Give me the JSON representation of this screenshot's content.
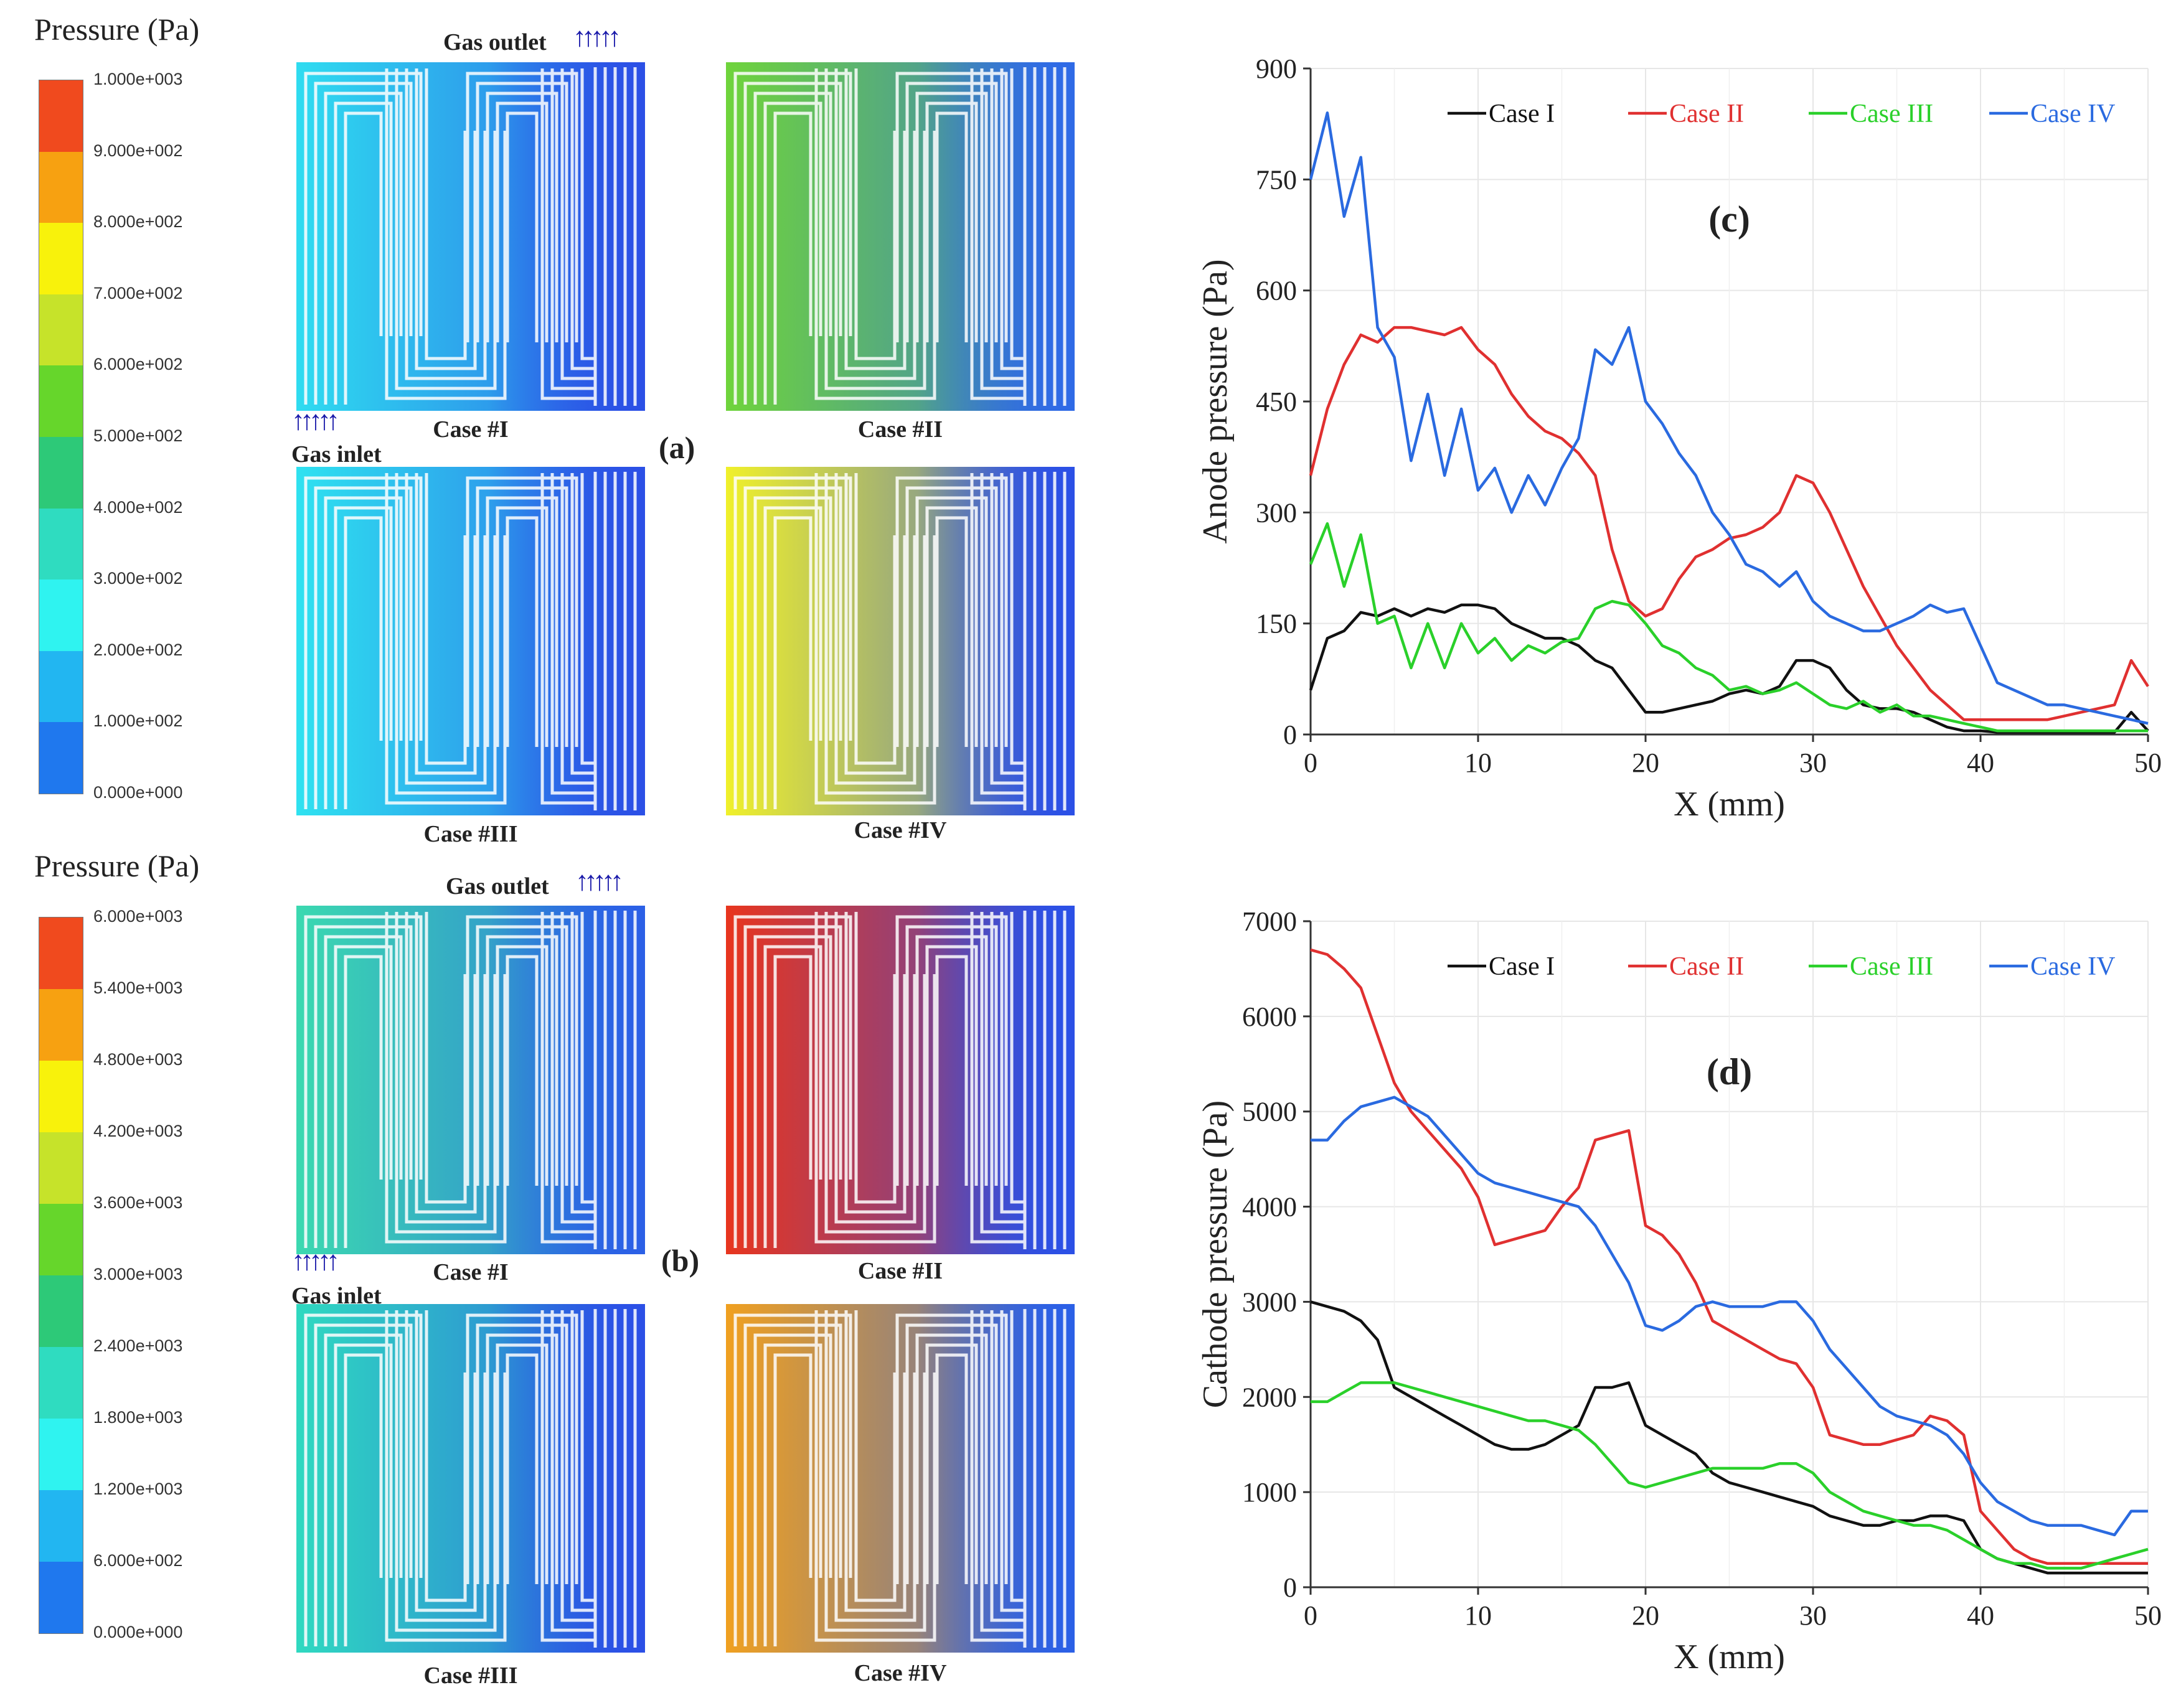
{
  "scale_a": {
    "title": "Pressure (Pa)",
    "labels": [
      "1.000e+003",
      "9.000e+002",
      "8.000e+002",
      "7.000e+002",
      "6.000e+002",
      "5.000e+002",
      "4.000e+002",
      "3.000e+002",
      "2.000e+002",
      "1.000e+002",
      "0.000e+000"
    ],
    "colors": [
      "#f04a1e",
      "#f7a111",
      "#f8f20b",
      "#c6e32a",
      "#66d62b",
      "#2dc978",
      "#2fdcc0",
      "#2ff3f0",
      "#22b6f1",
      "#1f78ee"
    ]
  },
  "scale_b": {
    "title": "Pressure (Pa)",
    "labels": [
      "6.000e+003",
      "5.400e+003",
      "4.800e+003",
      "4.200e+003",
      "3.600e+003",
      "3.000e+003",
      "2.400e+003",
      "1.800e+003",
      "1.200e+003",
      "6.000e+002",
      "0.000e+000"
    ],
    "colors": [
      "#f04a1e",
      "#f7a111",
      "#f8f20b",
      "#c6e32a",
      "#66d62b",
      "#2dc978",
      "#2fdcc0",
      "#2ff3f0",
      "#22b6f1",
      "#1f78ee"
    ]
  },
  "panel_a": {
    "tag": "(a)",
    "gas_outlet": "Gas outlet",
    "gas_inlet": "Gas inlet",
    "arrow_glyphs": "↑↑↑↑↑",
    "cases": [
      {
        "label": "Case #I",
        "base": "#2b50e6",
        "high": "#2fdcf0"
      },
      {
        "label": "Case #II",
        "base": "#2f6ae6",
        "high": "#6fd43b"
      },
      {
        "label": "Case #III",
        "base": "#2b50e6",
        "high": "#2fe2f0"
      },
      {
        "label": "Case #IV",
        "base": "#2b50e6",
        "high": "#f0f02a"
      }
    ]
  },
  "panel_b": {
    "tag": "(b)",
    "gas_outlet": "Gas outlet",
    "gas_inlet": "Gas inlet",
    "arrow_glyphs": "↑↑↑↑↑",
    "cases": [
      {
        "label": "Case #I",
        "base": "#2b60e6",
        "high": "#3bd9b0"
      },
      {
        "label": "Case #II",
        "base": "#2b50e6",
        "high": "#e8351e"
      },
      {
        "label": "Case #III",
        "base": "#2b50e6",
        "high": "#2fd9c0"
      },
      {
        "label": "Case #IV",
        "base": "#2b60e6",
        "high": "#f0a020"
      }
    ]
  },
  "charts": {
    "c": {
      "tag": "(c)",
      "ylabel": "Anode pressure (Pa)",
      "xlabel": "X (mm)"
    },
    "d": {
      "tag": "(d)",
      "ylabel": "Cathode pressure (Pa)",
      "xlabel": "X (mm)"
    }
  },
  "chart_data": [
    {
      "type": "line",
      "title": "(c)",
      "xlabel": "X (mm)",
      "ylabel": "Anode pressure (Pa)",
      "xlim": [
        0,
        50
      ],
      "ylim": [
        0,
        900
      ],
      "xticks": [
        0,
        10,
        20,
        30,
        40,
        50
      ],
      "yticks": [
        0,
        150,
        300,
        450,
        600,
        750,
        900
      ],
      "grid": true,
      "legend_position": "top",
      "series": [
        {
          "name": "Case I",
          "color": "#111111",
          "x": [
            0,
            1,
            2,
            3,
            4,
            5,
            6,
            7,
            8,
            9,
            10,
            11,
            12,
            13,
            14,
            15,
            16,
            17,
            18,
            19,
            20,
            21,
            22,
            23,
            24,
            25,
            26,
            27,
            28,
            29,
            30,
            31,
            32,
            33,
            34,
            35,
            36,
            37,
            38,
            39,
            40,
            41,
            42,
            43,
            44,
            45,
            46,
            47,
            48,
            49,
            50
          ],
          "y": [
            60,
            130,
            140,
            165,
            160,
            170,
            160,
            170,
            165,
            175,
            175,
            170,
            150,
            140,
            130,
            130,
            120,
            100,
            90,
            60,
            30,
            30,
            35,
            40,
            45,
            55,
            60,
            55,
            65,
            100,
            100,
            90,
            60,
            40,
            35,
            35,
            30,
            20,
            10,
            5,
            5,
            3,
            3,
            3,
            3,
            3,
            3,
            3,
            3,
            30,
            5
          ]
        },
        {
          "name": "Case II",
          "color": "#e03030",
          "x": [
            0,
            1,
            2,
            3,
            4,
            5,
            6,
            7,
            8,
            9,
            10,
            11,
            12,
            13,
            14,
            15,
            16,
            17,
            18,
            19,
            20,
            21,
            22,
            23,
            24,
            25,
            26,
            27,
            28,
            29,
            30,
            31,
            32,
            33,
            34,
            35,
            36,
            37,
            38,
            39,
            40,
            41,
            42,
            43,
            44,
            45,
            46,
            47,
            48,
            49,
            50
          ],
          "y": [
            350,
            440,
            500,
            540,
            530,
            550,
            550,
            545,
            540,
            550,
            520,
            500,
            460,
            430,
            410,
            400,
            380,
            350,
            250,
            180,
            160,
            170,
            210,
            240,
            250,
            265,
            270,
            280,
            300,
            350,
            340,
            300,
            250,
            200,
            160,
            120,
            90,
            60,
            40,
            20,
            20,
            20,
            20,
            20,
            20,
            25,
            30,
            35,
            40,
            100,
            65
          ]
        },
        {
          "name": "Case III",
          "color": "#2ad02a",
          "x": [
            0,
            1,
            2,
            3,
            4,
            5,
            6,
            7,
            8,
            9,
            10,
            11,
            12,
            13,
            14,
            15,
            16,
            17,
            18,
            19,
            20,
            21,
            22,
            23,
            24,
            25,
            26,
            27,
            28,
            29,
            30,
            31,
            32,
            33,
            34,
            35,
            36,
            37,
            38,
            39,
            40,
            41,
            42,
            43,
            44,
            45,
            46,
            47,
            48,
            49,
            50
          ],
          "y": [
            230,
            285,
            200,
            270,
            150,
            160,
            90,
            150,
            90,
            150,
            110,
            130,
            100,
            120,
            110,
            125,
            130,
            170,
            180,
            175,
            150,
            120,
            110,
            90,
            80,
            60,
            65,
            55,
            60,
            70,
            55,
            40,
            35,
            45,
            30,
            40,
            25,
            25,
            20,
            15,
            10,
            5,
            5,
            5,
            5,
            5,
            5,
            5,
            5,
            5,
            5
          ]
        },
        {
          "name": "Case IV",
          "color": "#2a6ae0",
          "x": [
            0,
            1,
            2,
            3,
            4,
            5,
            6,
            7,
            8,
            9,
            10,
            11,
            12,
            13,
            14,
            15,
            16,
            17,
            18,
            19,
            20,
            21,
            22,
            23,
            24,
            25,
            26,
            27,
            28,
            29,
            30,
            31,
            32,
            33,
            34,
            35,
            36,
            37,
            38,
            39,
            40,
            41,
            42,
            43,
            44,
            45,
            46,
            47,
            48,
            49,
            50
          ],
          "y": [
            750,
            840,
            700,
            780,
            550,
            510,
            370,
            460,
            350,
            440,
            330,
            360,
            300,
            350,
            310,
            360,
            400,
            520,
            500,
            550,
            450,
            420,
            380,
            350,
            300,
            270,
            230,
            220,
            200,
            220,
            180,
            160,
            150,
            140,
            140,
            150,
            160,
            175,
            165,
            170,
            120,
            70,
            60,
            50,
            40,
            40,
            35,
            30,
            25,
            20,
            15
          ]
        }
      ]
    },
    {
      "type": "line",
      "title": "(d)",
      "xlabel": "X (mm)",
      "ylabel": "Cathode pressure (Pa)",
      "xlim": [
        0,
        50
      ],
      "ylim": [
        0,
        7000
      ],
      "xticks": [
        0,
        10,
        20,
        30,
        40,
        50
      ],
      "yticks": [
        0,
        1000,
        2000,
        3000,
        4000,
        5000,
        6000,
        7000
      ],
      "grid": true,
      "legend_position": "top",
      "series": [
        {
          "name": "Case I",
          "color": "#111111",
          "x": [
            0,
            1,
            2,
            3,
            4,
            5,
            6,
            7,
            8,
            9,
            10,
            11,
            12,
            13,
            14,
            15,
            16,
            17,
            18,
            19,
            20,
            21,
            22,
            23,
            24,
            25,
            26,
            27,
            28,
            29,
            30,
            31,
            32,
            33,
            34,
            35,
            36,
            37,
            38,
            39,
            40,
            41,
            42,
            43,
            44,
            45,
            46,
            47,
            48,
            49,
            50
          ],
          "y": [
            3000,
            2950,
            2900,
            2800,
            2600,
            2100,
            2000,
            1900,
            1800,
            1700,
            1600,
            1500,
            1450,
            1450,
            1500,
            1600,
            1700,
            2100,
            2100,
            2150,
            1700,
            1600,
            1500,
            1400,
            1200,
            1100,
            1050,
            1000,
            950,
            900,
            850,
            750,
            700,
            650,
            650,
            700,
            700,
            750,
            750,
            700,
            400,
            300,
            250,
            200,
            150,
            150,
            150,
            150,
            150,
            150,
            150
          ]
        },
        {
          "name": "Case II",
          "color": "#e03030",
          "x": [
            0,
            1,
            2,
            3,
            4,
            5,
            6,
            7,
            8,
            9,
            10,
            11,
            12,
            13,
            14,
            15,
            16,
            17,
            18,
            19,
            20,
            21,
            22,
            23,
            24,
            25,
            26,
            27,
            28,
            29,
            30,
            31,
            32,
            33,
            34,
            35,
            36,
            37,
            38,
            39,
            40,
            41,
            42,
            43,
            44,
            45,
            46,
            47,
            48,
            49,
            50
          ],
          "y": [
            6700,
            6650,
            6500,
            6300,
            5800,
            5300,
            5000,
            4800,
            4600,
            4400,
            4100,
            3600,
            3650,
            3700,
            3750,
            4000,
            4200,
            4700,
            4750,
            4800,
            3800,
            3700,
            3500,
            3200,
            2800,
            2700,
            2600,
            2500,
            2400,
            2350,
            2100,
            1600,
            1550,
            1500,
            1500,
            1550,
            1600,
            1800,
            1750,
            1600,
            800,
            600,
            400,
            300,
            250,
            250,
            250,
            250,
            250,
            250,
            250
          ]
        },
        {
          "name": "Case III",
          "color": "#2ad02a",
          "x": [
            0,
            1,
            2,
            3,
            4,
            5,
            6,
            7,
            8,
            9,
            10,
            11,
            12,
            13,
            14,
            15,
            16,
            17,
            18,
            19,
            20,
            21,
            22,
            23,
            24,
            25,
            26,
            27,
            28,
            29,
            30,
            31,
            32,
            33,
            34,
            35,
            36,
            37,
            38,
            39,
            40,
            41,
            42,
            43,
            44,
            45,
            46,
            47,
            48,
            49,
            50
          ],
          "y": [
            1950,
            1950,
            2050,
            2150,
            2150,
            2150,
            2100,
            2050,
            2000,
            1950,
            1900,
            1850,
            1800,
            1750,
            1750,
            1700,
            1650,
            1500,
            1300,
            1100,
            1050,
            1100,
            1150,
            1200,
            1250,
            1250,
            1250,
            1250,
            1300,
            1300,
            1200,
            1000,
            900,
            800,
            750,
            700,
            650,
            650,
            600,
            500,
            400,
            300,
            250,
            250,
            200,
            200,
            200,
            250,
            300,
            350,
            400
          ]
        },
        {
          "name": "Case IV",
          "color": "#2a6ae0",
          "x": [
            0,
            1,
            2,
            3,
            4,
            5,
            6,
            7,
            8,
            9,
            10,
            11,
            12,
            13,
            14,
            15,
            16,
            17,
            18,
            19,
            20,
            21,
            22,
            23,
            24,
            25,
            26,
            27,
            28,
            29,
            30,
            31,
            32,
            33,
            34,
            35,
            36,
            37,
            38,
            39,
            40,
            41,
            42,
            43,
            44,
            45,
            46,
            47,
            48,
            49,
            50
          ],
          "y": [
            4700,
            4700,
            4900,
            5050,
            5100,
            5150,
            5050,
            4950,
            4750,
            4550,
            4350,
            4250,
            4200,
            4150,
            4100,
            4050,
            4000,
            3800,
            3500,
            3200,
            2750,
            2700,
            2800,
            2950,
            3000,
            2950,
            2950,
            2950,
            3000,
            3000,
            2800,
            2500,
            2300,
            2100,
            1900,
            1800,
            1750,
            1700,
            1600,
            1400,
            1100,
            900,
            800,
            700,
            650,
            650,
            650,
            600,
            550,
            800,
            800
          ]
        }
      ]
    }
  ]
}
